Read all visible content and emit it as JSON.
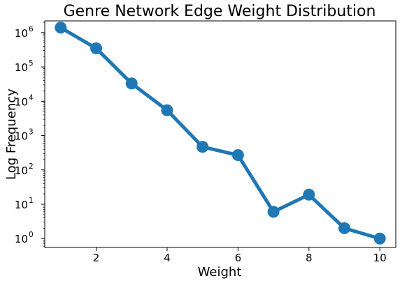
{
  "chart_data": {
    "type": "line",
    "title": "Genre Network Edge Weight Distribution",
    "xlabel": "Weight",
    "ylabel": "Log Frequency",
    "yscale": "log",
    "xlim": [
      0.55,
      10.45
    ],
    "ylim": [
      0.55,
      2200000
    ],
    "x_ticks": [
      2,
      4,
      6,
      8,
      10
    ],
    "y_ticks": [
      {
        "value": 1,
        "base": "10",
        "exp": "0"
      },
      {
        "value": 10,
        "base": "10",
        "exp": "1"
      },
      {
        "value": 100,
        "base": "10",
        "exp": "2"
      },
      {
        "value": 1000,
        "base": "10",
        "exp": "3"
      },
      {
        "value": 10000,
        "base": "10",
        "exp": "4"
      },
      {
        "value": 100000,
        "base": "10",
        "exp": "5"
      },
      {
        "value": 1000000,
        "base": "10",
        "exp": "6"
      }
    ],
    "grid": false,
    "legend": false,
    "series": [
      {
        "color": "#1f77b4",
        "x": [
          1,
          2,
          3,
          4,
          5,
          6,
          7,
          8,
          9,
          10
        ],
        "values": [
          1400000,
          350000,
          33000,
          5500,
          470,
          270,
          6,
          19,
          2,
          1
        ]
      }
    ]
  }
}
